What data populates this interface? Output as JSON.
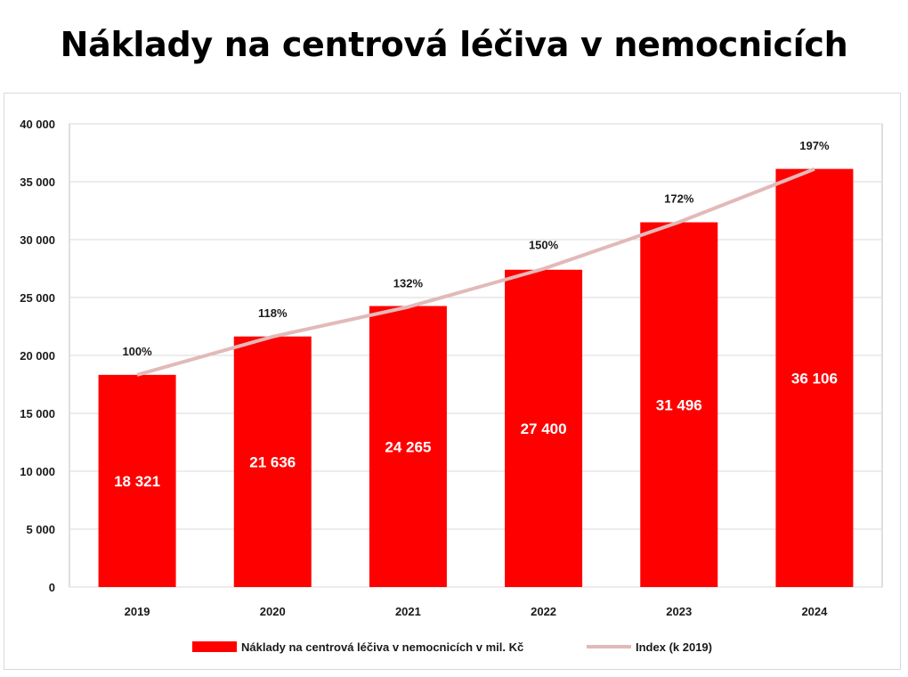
{
  "page": {
    "title": "Náklady na centrová léčiva v nemocnicích"
  },
  "colors": {
    "bar": "#ff0000",
    "index_line": "#e2b9b9",
    "grid": "#d9d9d9",
    "axis": "#bfbfbf"
  },
  "chart_data": {
    "type": "bar",
    "categories": [
      "2019",
      "2020",
      "2021",
      "2022",
      "2023",
      "2024"
    ],
    "series": [
      {
        "name": "Náklady na centrová léčiva v nemocnicích v mil. Kč",
        "type": "bar",
        "values": [
          18321,
          21636,
          24265,
          27400,
          31496,
          36106
        ],
        "labels": [
          "18 321",
          "21 636",
          "24 265",
          "27 400",
          "31 496",
          "36 106"
        ]
      },
      {
        "name": "Index (k 2019)",
        "type": "line",
        "values": [
          100,
          118,
          132,
          150,
          172,
          197
        ],
        "labels": [
          "100%",
          "118%",
          "132%",
          "150%",
          "172%",
          "197%"
        ]
      }
    ],
    "ylim": [
      0,
      40000
    ],
    "yticks": [
      0,
      5000,
      10000,
      15000,
      20000,
      25000,
      30000,
      35000,
      40000
    ],
    "ytick_labels": [
      "0",
      "5 000",
      "10 000",
      "15 000",
      "20 000",
      "25 000",
      "30 000",
      "35 000",
      "40 000"
    ],
    "grid": true,
    "legend_position": "bottom"
  }
}
